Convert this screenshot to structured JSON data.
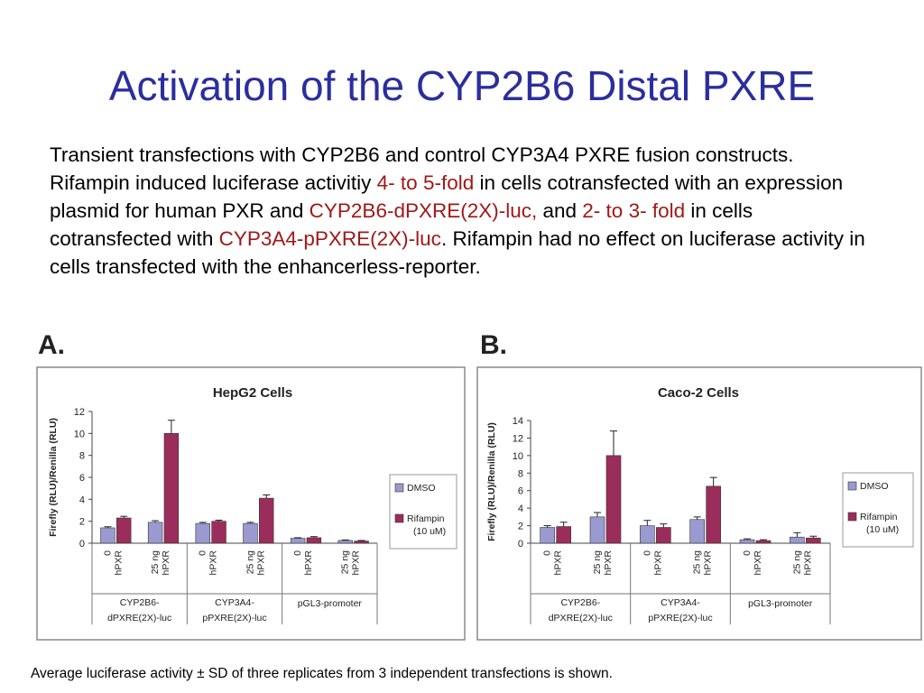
{
  "slide": {
    "title": "Activation of the CYP2B6 Distal PXRE",
    "body": [
      {
        "t": "Transient transfections with CYP2B6 and control CYP3A4 PXRE fusion constructs. Rifampin induced luciferase activitiy ",
        "h": false
      },
      {
        "t": "4- to 5-fold",
        "h": true
      },
      {
        "t": " in cells cotransfected with an expression plasmid for human PXR and ",
        "h": false
      },
      {
        "t": "CYP2B6-dPXRE(2X)-luc,",
        "h": true
      },
      {
        "t": " and ",
        "h": false
      },
      {
        "t": "2- to 3- fold",
        "h": true
      },
      {
        "t": " in cells cotransfected with ",
        "h": false
      },
      {
        "t": "CYP3A4-pPXRE(2X)-luc",
        "h": true
      },
      {
        "t": ".  Rifampin had no effect on luciferase activity in cells transfected with the enhancerless-reporter.",
        "h": false
      }
    ],
    "highlight_color": "#a01818",
    "panel_a": "A.",
    "panel_b": "B.",
    "footnote": "Average luciferase activity ± SD of three replicates from 3 independent transfections is shown."
  },
  "chart_data": [
    {
      "type": "bar",
      "title": "HepG2 Cells",
      "ylabel": "Firefly (RLU)/Renilla (RLU)",
      "ylim": [
        0,
        12
      ],
      "yticks": [
        0,
        2,
        4,
        6,
        8,
        10,
        12
      ],
      "categories": [
        [
          "0",
          "hPXR"
        ],
        [
          "25 ng",
          "hPXR"
        ],
        [
          "0",
          "hPXR"
        ],
        [
          "25 ng",
          "hPXR"
        ],
        [
          "0",
          "hPXR"
        ],
        [
          "25 ng",
          "hPXR"
        ]
      ],
      "groups": [
        [
          "CYP2B6-",
          "dPXRE(2X)-luc"
        ],
        [
          "CYP3A4-",
          "pPXRE(2X)-luc"
        ],
        [
          "pGL3-promoter"
        ]
      ],
      "series": [
        {
          "name": "DMSO",
          "color": "#9a9ad0",
          "values": [
            1.4,
            1.9,
            1.8,
            1.8,
            0.45,
            0.25
          ],
          "errors": [
            0.1,
            0.15,
            0.1,
            0.1,
            0.05,
            0.05
          ]
        },
        {
          "name": "Rifampin (10 uM)",
          "legend": [
            "Rifampin",
            "(10 uM)"
          ],
          "color": "#9b2d5c",
          "values": [
            2.3,
            10.0,
            2.0,
            4.1,
            0.5,
            0.2
          ],
          "errors": [
            0.15,
            1.2,
            0.1,
            0.3,
            0.1,
            0.05
          ]
        }
      ],
      "legend_position": "right"
    },
    {
      "type": "bar",
      "title": "Caco-2 Cells",
      "ylabel": "Firefly (RLU)/Renilla (RLU)",
      "ylim": [
        0,
        14
      ],
      "yticks": [
        0,
        2,
        4,
        6,
        8,
        10,
        12,
        14
      ],
      "categories": [
        [
          "0",
          "hPXR"
        ],
        [
          "25 ng",
          "hPXR"
        ],
        [
          "0",
          "hPXR"
        ],
        [
          "25 ng",
          "hPXR"
        ],
        [
          "0",
          "hPXR"
        ],
        [
          "25 ng",
          "hPXR"
        ]
      ],
      "groups": [
        [
          "CYP2B6-",
          "dPXRE(2X)-luc"
        ],
        [
          "CYP3A4-",
          "pPXRE(2X)-luc"
        ],
        [
          "pGL3-promoter"
        ]
      ],
      "series": [
        {
          "name": "DMSO",
          "color": "#9a9ad0",
          "values": [
            1.8,
            3.0,
            2.0,
            2.7,
            0.4,
            0.7
          ],
          "errors": [
            0.2,
            0.5,
            0.6,
            0.3,
            0.1,
            0.5
          ]
        },
        {
          "name": "Rifampin (10 uM)",
          "legend": [
            "Rifampin",
            "(10 uM)"
          ],
          "color": "#9b2d5c",
          "values": [
            1.9,
            10.0,
            1.8,
            6.5,
            0.3,
            0.6
          ],
          "errors": [
            0.5,
            2.8,
            0.4,
            1.0,
            0.1,
            0.2
          ]
        }
      ],
      "legend_position": "right"
    }
  ]
}
